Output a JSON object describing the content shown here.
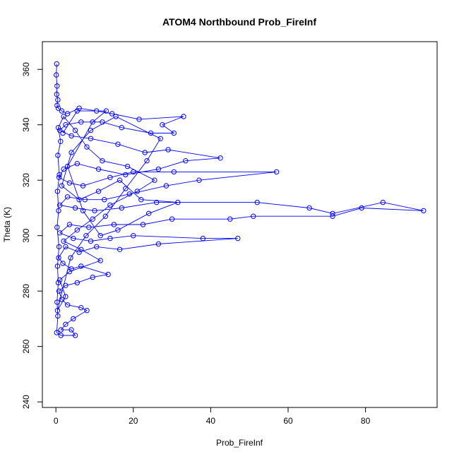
{
  "chart_data": {
    "type": "line",
    "title": "ATOM4 Northbound Prob_FireInf",
    "xlabel": "Prob_FireInf",
    "ylabel": "Theta (K)",
    "xlim": [
      -3.5,
      98.5
    ],
    "ylim": [
      238,
      370
    ],
    "xticks": [
      0,
      20,
      40,
      60,
      80
    ],
    "yticks": [
      240,
      260,
      280,
      300,
      320,
      340,
      360
    ],
    "grid": false,
    "legend": "none",
    "series": [
      {
        "color": "#0000ff",
        "marker": "open-circle",
        "points": [
          [
            0.2,
            362
          ],
          [
            0.1,
            358
          ],
          [
            0.3,
            354
          ],
          [
            0.2,
            351
          ],
          [
            0.5,
            349
          ],
          [
            0.3,
            347
          ],
          [
            0.6,
            346
          ],
          [
            1.5,
            345
          ],
          [
            3.0,
            344
          ],
          [
            6.0,
            346
          ],
          [
            10.5,
            345
          ],
          [
            14.5,
            344
          ],
          [
            21.5,
            342
          ],
          [
            33.0,
            343
          ],
          [
            27.5,
            340
          ],
          [
            30.5,
            337
          ],
          [
            24.5,
            337
          ],
          [
            17.0,
            339
          ],
          [
            12.0,
            341
          ],
          [
            6.5,
            341
          ],
          [
            2.5,
            340
          ],
          [
            1.0,
            338
          ],
          [
            4.0,
            336
          ],
          [
            9.0,
            335
          ],
          [
            16.0,
            333
          ],
          [
            23.0,
            330
          ],
          [
            29.0,
            331
          ],
          [
            42.5,
            328
          ],
          [
            33.5,
            327
          ],
          [
            26.5,
            324
          ],
          [
            18.0,
            322
          ],
          [
            11.0,
            324
          ],
          [
            5.5,
            326
          ],
          [
            2.0,
            324
          ],
          [
            0.8,
            321
          ],
          [
            3.5,
            319
          ],
          [
            7.0,
            318
          ],
          [
            14.0,
            321
          ],
          [
            20.0,
            323
          ],
          [
            30.5,
            323
          ],
          [
            57.0,
            323
          ],
          [
            37.0,
            320
          ],
          [
            28.5,
            318
          ],
          [
            19.0,
            315
          ],
          [
            12.5,
            313
          ],
          [
            7.5,
            313
          ],
          [
            3.0,
            314
          ],
          [
            1.0,
            311
          ],
          [
            5.0,
            310
          ],
          [
            10.0,
            309
          ],
          [
            17.0,
            310
          ],
          [
            26.0,
            312
          ],
          [
            52.0,
            312
          ],
          [
            65.5,
            310
          ],
          [
            71.5,
            308
          ],
          [
            84.5,
            312
          ],
          [
            95.0,
            309
          ],
          [
            79.0,
            310
          ],
          [
            71.5,
            307
          ],
          [
            51.0,
            307
          ],
          [
            45.0,
            306
          ],
          [
            30.0,
            306
          ],
          [
            22.5,
            304
          ],
          [
            15.0,
            304
          ],
          [
            8.5,
            303
          ],
          [
            3.5,
            304
          ],
          [
            1.0,
            301
          ],
          [
            4.5,
            299
          ],
          [
            9.0,
            298
          ],
          [
            14.0,
            299
          ],
          [
            20.0,
            300
          ],
          [
            38.0,
            299
          ],
          [
            47.0,
            299
          ],
          [
            26.5,
            297
          ],
          [
            16.5,
            295
          ],
          [
            10.5,
            296
          ],
          [
            6.0,
            294
          ],
          [
            2.5,
            296
          ],
          [
            0.7,
            292
          ],
          [
            1.8,
            290
          ],
          [
            4.0,
            288
          ],
          [
            6.5,
            289
          ],
          [
            13.5,
            286
          ],
          [
            9.5,
            285
          ],
          [
            5.5,
            283
          ],
          [
            2.5,
            282
          ],
          [
            0.8,
            280
          ],
          [
            1.5,
            277
          ],
          [
            3.0,
            275
          ],
          [
            6.5,
            274
          ],
          [
            8.0,
            273
          ],
          [
            4.5,
            270
          ],
          [
            2.5,
            268
          ],
          [
            1.3,
            266
          ],
          [
            4.0,
            266
          ],
          [
            5.0,
            264
          ],
          [
            1.3,
            264
          ],
          [
            0.2,
            265
          ],
          [
            0.5,
            271
          ],
          [
            0.3,
            276
          ],
          [
            0.6,
            283
          ],
          [
            0.4,
            289
          ],
          [
            0.8,
            296
          ],
          [
            0.3,
            303
          ],
          [
            0.7,
            309
          ],
          [
            0.4,
            316
          ],
          [
            0.9,
            322
          ],
          [
            0.5,
            329
          ],
          [
            1.2,
            334
          ],
          [
            0.6,
            339
          ],
          [
            2.0,
            343
          ],
          [
            5.0,
            338
          ],
          [
            8.0,
            332
          ],
          [
            12.0,
            327
          ],
          [
            18.5,
            325
          ],
          [
            25.5,
            320
          ],
          [
            21.0,
            316
          ],
          [
            14.0,
            311
          ],
          [
            9.5,
            306
          ],
          [
            5.5,
            302
          ],
          [
            2.0,
            298
          ],
          [
            6.5,
            295
          ],
          [
            11.5,
            291
          ],
          [
            3.5,
            287
          ],
          [
            1.0,
            284
          ],
          [
            2.5,
            278
          ],
          [
            0.4,
            273
          ],
          [
            3.8,
            292
          ],
          [
            7.8,
            300
          ],
          [
            12.8,
            307
          ],
          [
            18.0,
            317
          ],
          [
            23.5,
            327
          ],
          [
            27.0,
            335
          ],
          [
            15.5,
            343
          ],
          [
            9.0,
            338
          ],
          [
            4.0,
            330
          ],
          [
            1.5,
            318
          ],
          [
            6.0,
            313
          ],
          [
            11.0,
            316
          ],
          [
            16.5,
            320
          ],
          [
            22.0,
            313
          ],
          [
            31.5,
            312
          ],
          [
            24.0,
            308
          ],
          [
            16.0,
            302
          ],
          [
            11.5,
            300
          ],
          [
            7.0,
            309
          ],
          [
            3.0,
            325
          ],
          [
            9.5,
            341
          ],
          [
            13.0,
            345
          ],
          [
            5.5,
            345
          ],
          [
            1.8,
            337
          ]
        ]
      }
    ]
  }
}
